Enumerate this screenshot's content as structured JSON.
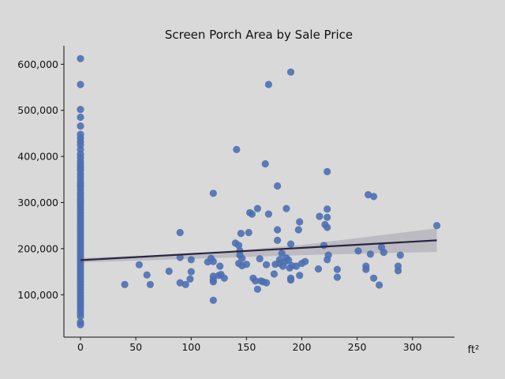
{
  "chart_data": {
    "type": "scatter",
    "title": "Screen Porch Area by Sale Price",
    "xlabel": "ft²",
    "ylabel": "",
    "xlim": [
      -15,
      338
    ],
    "ylim": [
      8000,
      640000
    ],
    "x_ticks": [
      0,
      50,
      100,
      150,
      200,
      250,
      300
    ],
    "y_ticks": [
      100000,
      200000,
      300000,
      400000,
      500000,
      600000
    ],
    "x_tick_labels": [
      "0",
      "50",
      "100",
      "150",
      "200",
      "250",
      "300"
    ],
    "y_tick_labels": [
      "100,000",
      "200,000",
      "300,000",
      "400,000",
      "500,000",
      "600,000"
    ],
    "grid": false,
    "colors": {
      "background": "#d9d9d9",
      "point": "#4c6fb1",
      "trend_line": "#2b2540",
      "confidence_band": "#b5b5bc"
    },
    "trend_line": {
      "x": [
        0,
        322
      ],
      "y": [
        175000,
        218000
      ]
    },
    "confidence_band": {
      "x": [
        0,
        100,
        200,
        322
      ],
      "lower": [
        170000,
        178000,
        186000,
        193000
      ],
      "upper": [
        180000,
        188000,
        208000,
        244000
      ]
    },
    "points": [
      [
        0,
        612000
      ],
      [
        0,
        556000
      ],
      [
        0,
        502000
      ],
      [
        0,
        485000
      ],
      [
        0,
        466000
      ],
      [
        0,
        448000
      ],
      [
        0,
        440000
      ],
      [
        0,
        432000
      ],
      [
        0,
        425000
      ],
      [
        0,
        415000
      ],
      [
        0,
        405000
      ],
      [
        0,
        398000
      ],
      [
        0,
        390000
      ],
      [
        0,
        383000
      ],
      [
        0,
        376000
      ],
      [
        0,
        370000
      ],
      [
        0,
        362000
      ],
      [
        0,
        355000
      ],
      [
        0,
        348000
      ],
      [
        0,
        341000
      ],
      [
        0,
        335000
      ],
      [
        0,
        328000
      ],
      [
        0,
        321000
      ],
      [
        0,
        315000
      ],
      [
        0,
        308000
      ],
      [
        0,
        302000
      ],
      [
        0,
        296000
      ],
      [
        0,
        290000
      ],
      [
        0,
        284000
      ],
      [
        0,
        278000
      ],
      [
        0,
        272000
      ],
      [
        0,
        266000
      ],
      [
        0,
        260000
      ],
      [
        0,
        254000
      ],
      [
        0,
        248000
      ],
      [
        0,
        242000
      ],
      [
        0,
        236000
      ],
      [
        0,
        230000
      ],
      [
        0,
        224000
      ],
      [
        0,
        218000
      ],
      [
        0,
        212000
      ],
      [
        0,
        206000
      ],
      [
        0,
        200000
      ],
      [
        0,
        194000
      ],
      [
        0,
        188000
      ],
      [
        0,
        182000
      ],
      [
        0,
        176000
      ],
      [
        0,
        170000
      ],
      [
        0,
        164000
      ],
      [
        0,
        158000
      ],
      [
        0,
        152000
      ],
      [
        0,
        146000
      ],
      [
        0,
        140000
      ],
      [
        0,
        134000
      ],
      [
        0,
        128000
      ],
      [
        0,
        122000
      ],
      [
        0,
        116000
      ],
      [
        0,
        110000
      ],
      [
        0,
        104000
      ],
      [
        0,
        98000
      ],
      [
        0,
        92000
      ],
      [
        0,
        86000
      ],
      [
        0,
        80000
      ],
      [
        0,
        74000
      ],
      [
        0,
        67000
      ],
      [
        0,
        60000
      ],
      [
        0,
        53000
      ],
      [
        0,
        40000
      ],
      [
        0,
        35000
      ],
      [
        40,
        122000
      ],
      [
        53,
        165000
      ],
      [
        60,
        143000
      ],
      [
        63,
        122000
      ],
      [
        80,
        151000
      ],
      [
        90,
        235000
      ],
      [
        90,
        181000
      ],
      [
        90,
        126000
      ],
      [
        95,
        122000
      ],
      [
        99,
        134000
      ],
      [
        100,
        176000
      ],
      [
        100,
        150000
      ],
      [
        115,
        171000
      ],
      [
        118,
        179000
      ],
      [
        120,
        320000
      ],
      [
        120,
        172000
      ],
      [
        120,
        140000
      ],
      [
        120,
        133000
      ],
      [
        120,
        128000
      ],
      [
        120,
        88000
      ],
      [
        125,
        142000
      ],
      [
        126,
        162000
      ],
      [
        127,
        144000
      ],
      [
        130,
        136000
      ],
      [
        140,
        212000
      ],
      [
        141,
        415000
      ],
      [
        143,
        207000
      ],
      [
        143,
        168000
      ],
      [
        144,
        195000
      ],
      [
        144,
        186000
      ],
      [
        145,
        233000
      ],
      [
        146,
        179000
      ],
      [
        146,
        163000
      ],
      [
        150,
        166000
      ],
      [
        152,
        235000
      ],
      [
        153,
        278000
      ],
      [
        155,
        275000
      ],
      [
        156,
        136000
      ],
      [
        158,
        130000
      ],
      [
        160,
        287000
      ],
      [
        160,
        112000
      ],
      [
        162,
        178000
      ],
      [
        163,
        130000
      ],
      [
        165,
        128000
      ],
      [
        167,
        384000
      ],
      [
        168,
        165000
      ],
      [
        168,
        126000
      ],
      [
        170,
        556000
      ],
      [
        170,
        275000
      ],
      [
        175,
        145000
      ],
      [
        176,
        166000
      ],
      [
        178,
        336000
      ],
      [
        178,
        241000
      ],
      [
        178,
        218000
      ],
      [
        180,
        176000
      ],
      [
        180,
        168000
      ],
      [
        182,
        190000
      ],
      [
        183,
        162000
      ],
      [
        185,
        172000
      ],
      [
        186,
        287000
      ],
      [
        186,
        180000
      ],
      [
        188,
        175000
      ],
      [
        189,
        158000
      ],
      [
        190,
        583000
      ],
      [
        190,
        210000
      ],
      [
        190,
        136000
      ],
      [
        190,
        132000
      ],
      [
        191,
        163000
      ],
      [
        195,
        162000
      ],
      [
        197,
        241000
      ],
      [
        198,
        258000
      ],
      [
        198,
        142000
      ],
      [
        200,
        168000
      ],
      [
        203,
        172000
      ],
      [
        215,
        156000
      ],
      [
        216,
        270000
      ],
      [
        220,
        207000
      ],
      [
        221,
        252000
      ],
      [
        223,
        367000
      ],
      [
        223,
        286000
      ],
      [
        223,
        268000
      ],
      [
        223,
        246000
      ],
      [
        223,
        176000
      ],
      [
        224,
        186000
      ],
      [
        232,
        155000
      ],
      [
        232,
        138000
      ],
      [
        251,
        195000
      ],
      [
        258,
        162000
      ],
      [
        258,
        155000
      ],
      [
        260,
        317000
      ],
      [
        262,
        188000
      ],
      [
        265,
        313000
      ],
      [
        265,
        136000
      ],
      [
        270,
        121000
      ],
      [
        272,
        203000
      ],
      [
        274,
        192000
      ],
      [
        287,
        162000
      ],
      [
        287,
        152000
      ],
      [
        289,
        186000
      ],
      [
        322,
        250000
      ]
    ]
  }
}
